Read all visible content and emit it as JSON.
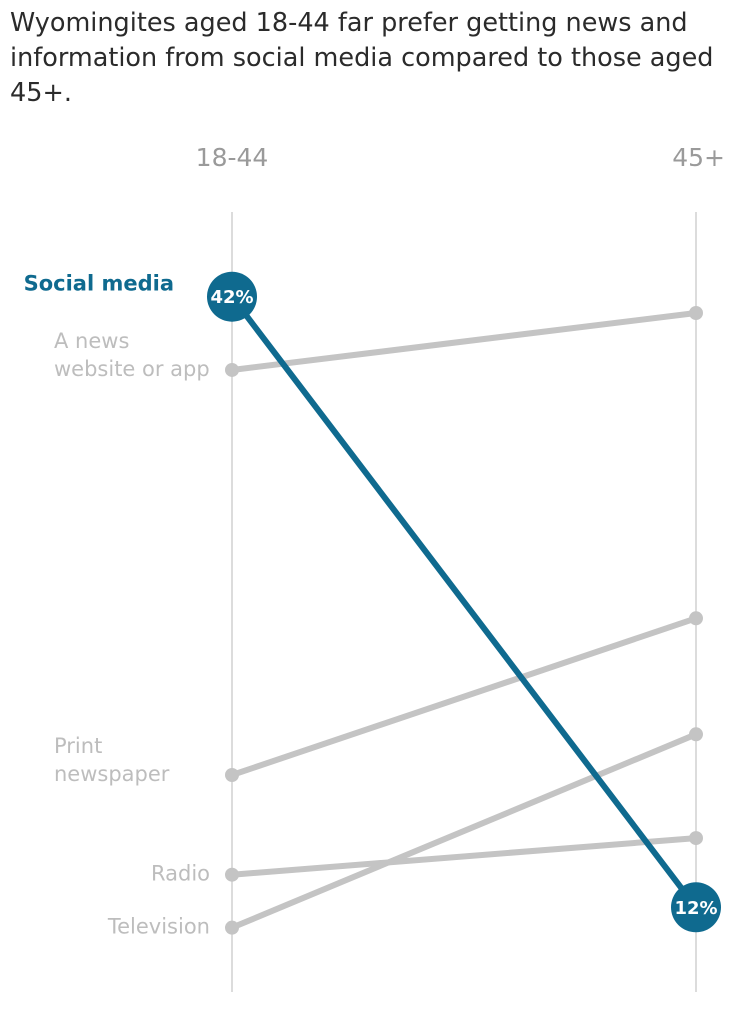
{
  "title": "Wyomingites aged 18-44 far prefer getting news and information from social media compared to those aged 45+.",
  "colors": {
    "highlight": "#0f6a8f",
    "muted": "#c4c4c4",
    "axis": "#dcdcdc",
    "label_muted": "#bdbdbd",
    "column_label": "#9a9a9a"
  },
  "chart_data": {
    "type": "line",
    "subtype": "slope",
    "x": [
      "18-44",
      "45+"
    ],
    "y_unit": "%",
    "ylim": [
      10,
      44
    ],
    "grid": false,
    "legend": "none",
    "series": [
      {
        "name": "Social media",
        "values": [
          42,
          12
        ],
        "highlight": true,
        "value_labels": [
          "42%",
          "12%"
        ]
      },
      {
        "name": "A news website or app",
        "label_lines": [
          "A news",
          "website or app"
        ],
        "values": [
          38.4,
          41.2
        ]
      },
      {
        "name": "Print newspaper",
        "label_lines": [
          "Print",
          "newspaper"
        ],
        "values": [
          18.5,
          26.2
        ]
      },
      {
        "name": "Radio",
        "label_lines": [
          "Radio"
        ],
        "values": [
          13.6,
          15.4
        ]
      },
      {
        "name": "Television",
        "label_lines": [
          "Television"
        ],
        "values": [
          11,
          20.5
        ]
      }
    ]
  }
}
